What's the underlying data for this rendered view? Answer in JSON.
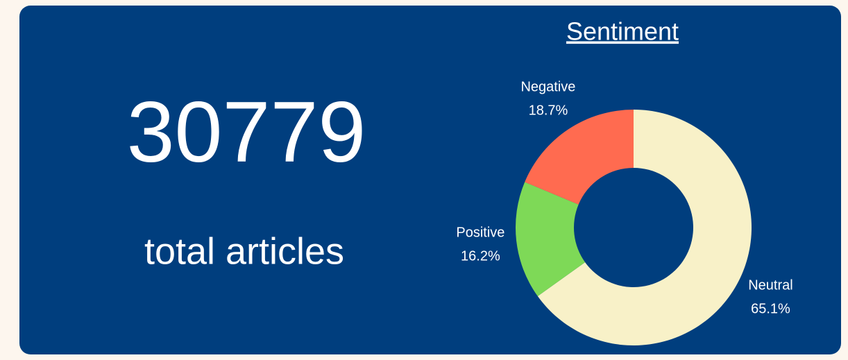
{
  "kpi": {
    "value": 30779,
    "label": "total articles"
  },
  "chart_data": {
    "type": "pie",
    "title": "Sentiment",
    "donut": true,
    "categories": [
      "Neutral",
      "Positive",
      "Negative"
    ],
    "values": [
      65.1,
      16.2,
      18.7
    ],
    "value_labels": [
      "65.1%",
      "16.2%",
      "18.7%"
    ],
    "colors": [
      "#f8f1c8",
      "#7ed957",
      "#ff6b50"
    ]
  }
}
